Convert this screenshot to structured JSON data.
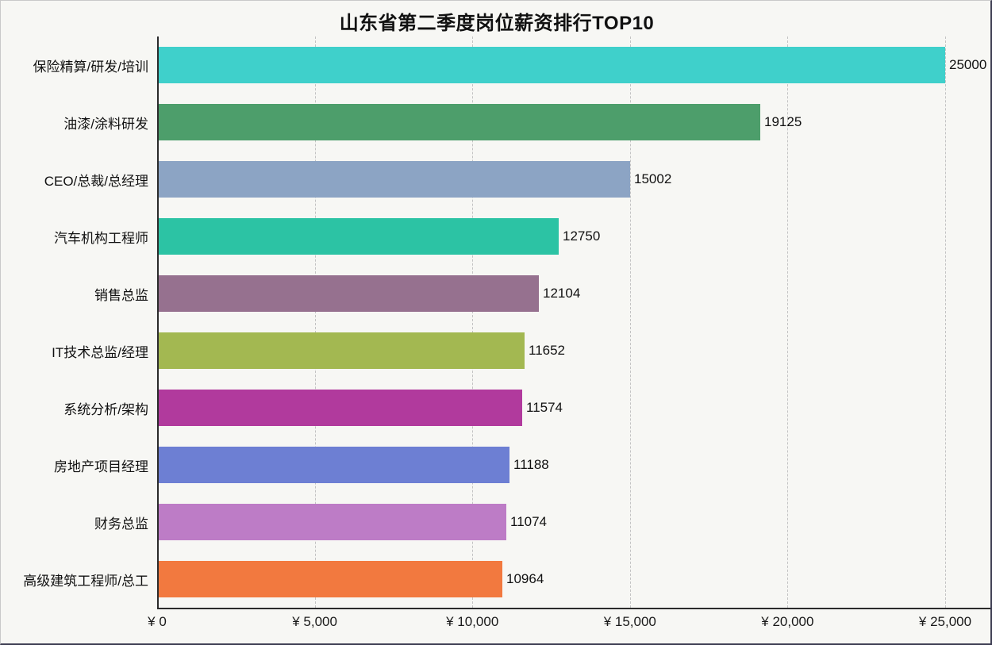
{
  "title": "山东省第二季度岗位薪资排行TOP10",
  "chart_data": {
    "type": "bar",
    "orientation": "horizontal",
    "title": "山东省第二季度岗位薪资排行TOP10",
    "categories": [
      "保险精算/研发/培训",
      "油漆/涂料研发",
      "CEO/总裁/总经理",
      "汽车机构工程师",
      "销售总监",
      "IT技术总监/经理",
      "系统分析/架构",
      "房地产项目经理",
      "财务总监",
      "高级建筑工程师/总工"
    ],
    "values": [
      25000,
      19125,
      15002,
      12750,
      12104,
      11652,
      11574,
      11188,
      11074,
      10964
    ],
    "value_labels": [
      "25000",
      "19125",
      "15002",
      "12750",
      "12104",
      "11652",
      "11574",
      "11188",
      "11074",
      "10964"
    ],
    "bar_colors": [
      "#3fd0cb",
      "#4d9e6b",
      "#8ca4c4",
      "#2cc3a4",
      "#96718f",
      "#a3b851",
      "#b13a9d",
      "#6d7fd3",
      "#bd7cc6",
      "#f2793f"
    ],
    "x_ticks": [
      {
        "value": 0,
        "label": "¥ 0"
      },
      {
        "value": 5000,
        "label": "¥ 5,000"
      },
      {
        "value": 10000,
        "label": "¥ 10,000"
      },
      {
        "value": 15000,
        "label": "¥ 15,000"
      },
      {
        "value": 20000,
        "label": "¥ 20,000"
      },
      {
        "value": 25000,
        "label": "¥ 25,000"
      }
    ],
    "xlim": [
      0,
      25000
    ],
    "xlabel": "",
    "ylabel": "",
    "grid": "vertical-dashed",
    "legend": "none",
    "background": "#f7f7f4"
  }
}
